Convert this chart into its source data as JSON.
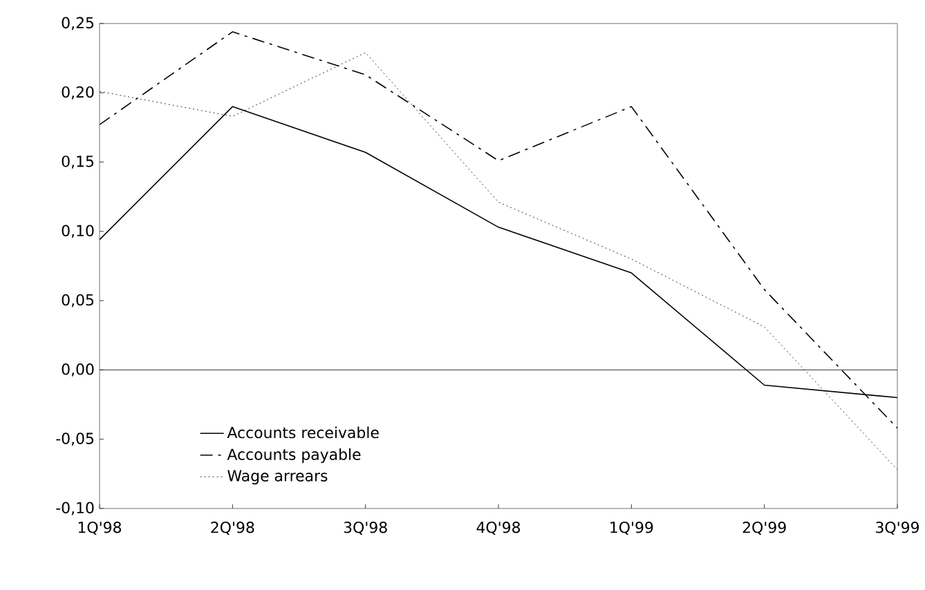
{
  "chart_data": {
    "type": "line",
    "categories": [
      "1Q'98",
      "2Q'98",
      "3Q'98",
      "4Q'98",
      "1Q'99",
      "2Q'99",
      "3Q'99"
    ],
    "series": [
      {
        "name": "Accounts receivable",
        "color": "#000000",
        "line_style": "solid",
        "values": [
          0.094,
          0.19,
          0.157,
          0.103,
          0.07,
          -0.011,
          -0.02
        ]
      },
      {
        "name": "Accounts payable",
        "color": "#000000",
        "line_style": "dashdot",
        "values": [
          0.177,
          0.244,
          0.213,
          0.151,
          0.19,
          0.058,
          -0.042
        ]
      },
      {
        "name": "Wage arrears",
        "color": "#000000",
        "line_style": "dotted",
        "values": [
          0.201,
          0.183,
          0.229,
          0.121,
          0.08,
          0.031,
          -0.072
        ]
      }
    ],
    "ylim": [
      -0.1,
      0.25
    ],
    "yticks": [
      {
        "value": -0.1,
        "label": "-0,10"
      },
      {
        "value": -0.05,
        "label": "-0,05"
      },
      {
        "value": 0,
        "label": "0,00"
      },
      {
        "value": 0.05,
        "label": "0,05"
      },
      {
        "value": 0.1,
        "label": "0,10"
      },
      {
        "value": 0.15,
        "label": "0,15"
      },
      {
        "value": 0.2,
        "label": "0,20"
      },
      {
        "value": 0.25,
        "label": "0,25"
      }
    ],
    "ref_lines": [
      {
        "axis": "y",
        "value": 0
      }
    ],
    "legend": "bottom left",
    "grid": false,
    "marker": "none"
  }
}
